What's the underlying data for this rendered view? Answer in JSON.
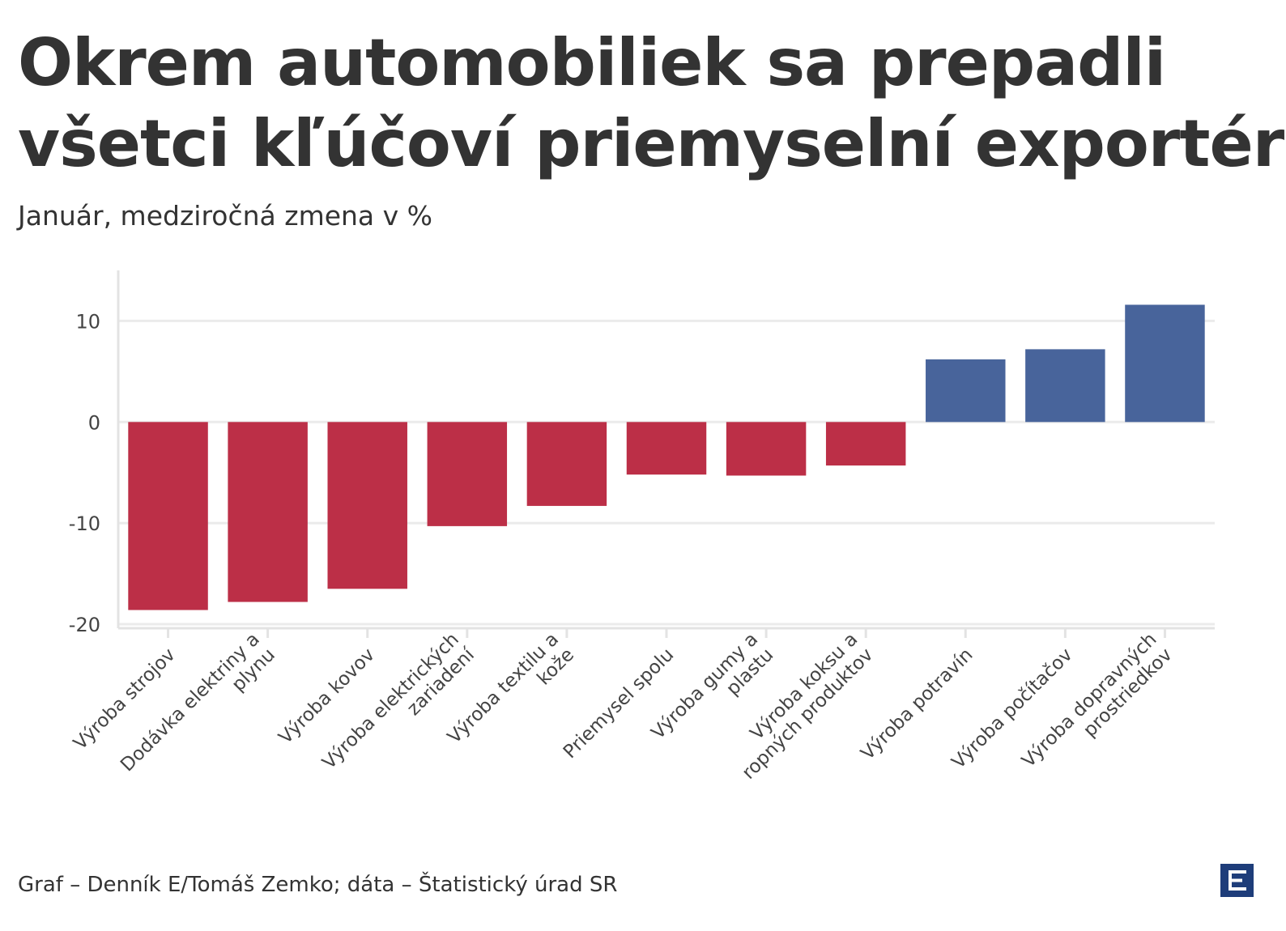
{
  "title_lines": [
    "Okrem automobiliek sa prepadli",
    "všetci kľúčoví priemyselní exportéri"
  ],
  "subtitle": "Január, medziročná zmena v %",
  "source": "Graf – Denník E/Tomáš Zemko; dáta – Štatistický úrad SR",
  "colors": {
    "negative": "#bc2f47",
    "positive": "#48649b",
    "grid": "#ebebeb",
    "axis": "#e3e3e3",
    "logo": "#1e3d7a"
  },
  "chart_data": {
    "type": "bar",
    "categories": [
      [
        "Výroba strojov"
      ],
      [
        "Dodávka elektriny a",
        "plynu"
      ],
      [
        "Výroba kovov"
      ],
      [
        "Výroba elektrických",
        "zariadení"
      ],
      [
        "Výroba textilu a",
        "kože"
      ],
      [
        "Priemysel spolu"
      ],
      [
        "Výroba gumy a",
        "plastu"
      ],
      [
        "Výroba koksu a",
        "ropných produktov"
      ],
      [
        "Výroba potravín"
      ],
      [
        "Výroba počítačov"
      ],
      [
        "Výroba dopravných",
        "prostriedkov"
      ]
    ],
    "values": [
      -18.6,
      -17.8,
      -16.5,
      -10.3,
      -8.3,
      -5.2,
      -5.3,
      -4.3,
      6.2,
      7.2,
      11.6
    ],
    "ylim": [
      -20.4,
      15
    ],
    "yticks": [
      10,
      0,
      -10,
      -20
    ],
    "xlabel": "",
    "ylabel": "",
    "grid": true,
    "legend": "none"
  }
}
